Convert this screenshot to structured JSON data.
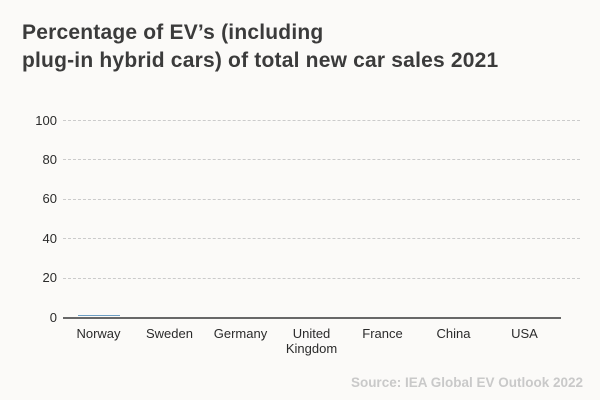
{
  "page": {
    "background_color": "#fbfaf8"
  },
  "title": {
    "line1": "Percentage of EV’s (including",
    "line2": "plug-in hybrid cars) of total new car sales 2021"
  },
  "source": {
    "text": "Source: IEA Global EV Outlook 2022"
  },
  "chart_data": {
    "type": "bar",
    "title": "Percentage of EV’s (including plug-in hybrid cars) of total new car sales 2021",
    "categories": [
      "Norway",
      "Sweden",
      "Germany",
      "United Kingdom",
      "France",
      "China",
      "USA"
    ],
    "values": [
      1,
      0,
      0,
      0,
      0,
      0,
      0
    ],
    "xlabel": "",
    "ylabel": "",
    "ylim": [
      0,
      100
    ],
    "yticks": [
      0,
      20,
      40,
      60,
      80,
      100
    ],
    "grid": "horizontal-dashed",
    "legend": "none",
    "bar_color": "#6d9ec3",
    "axis_color": "#686868",
    "gridline_color": "#cbcbcb",
    "source": "Source: IEA Global EV Outlook 2022"
  }
}
